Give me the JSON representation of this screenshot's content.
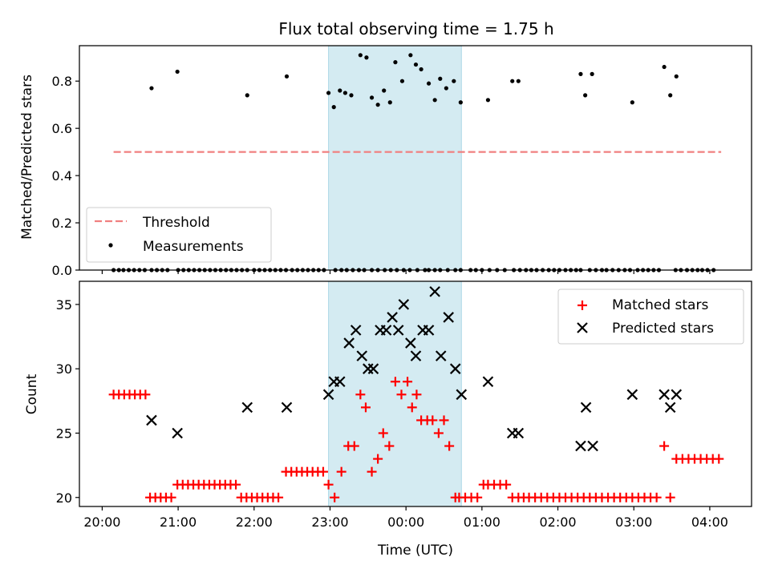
{
  "title": "Flux total observing time = 1.75 h",
  "colors": {
    "threshold": "#f08080",
    "band": "#add8e6",
    "matched": "#ff0000",
    "predicted": "#000000"
  },
  "chart_data": [
    {
      "type": "scatter",
      "ylabel": "Matched/Predicted stars",
      "ylim": [
        0,
        0.95
      ],
      "xlim_hours": [
        -0.3,
        8.55
      ],
      "yticks": [
        0.0,
        0.2,
        0.4,
        0.6,
        0.8
      ],
      "ytick_labels": [
        "0.0",
        "0.2",
        "0.4",
        "0.6",
        "0.8"
      ],
      "threshold": {
        "name": "Threshold",
        "value": 0.5,
        "x_range": [
          0.15,
          8.15
        ]
      },
      "shaded_span": [
        2.98,
        4.73
      ],
      "legend_position": "lower-left",
      "measurements": {
        "name": "Measurements",
        "x": [
          0.15,
          0.22,
          0.28,
          0.35,
          0.42,
          0.49,
          0.56,
          0.65,
          0.72,
          0.79,
          0.86,
          1.0,
          1.07,
          1.14,
          1.21,
          1.28,
          1.35,
          1.42,
          1.49,
          1.56,
          1.63,
          1.7,
          1.77,
          1.84,
          1.91,
          2.0,
          2.07,
          2.14,
          2.21,
          2.28,
          2.35,
          2.42,
          2.5,
          2.57,
          2.64,
          2.71,
          2.78,
          2.85,
          2.92,
          3.07,
          3.15,
          3.22,
          3.3,
          3.38,
          3.45,
          3.55,
          3.63,
          3.72,
          3.8,
          3.88,
          3.97,
          4.05,
          4.15,
          4.25,
          4.3,
          4.38,
          4.45,
          4.55,
          4.65,
          4.72,
          4.85,
          4.92,
          5.0,
          5.1,
          5.2,
          5.3,
          5.42,
          5.5,
          5.58,
          5.65,
          5.72,
          5.8,
          5.88,
          5.95,
          6.02,
          6.1,
          6.17,
          6.24,
          6.3,
          6.42,
          6.5,
          6.58,
          6.64,
          6.72,
          6.8,
          6.88,
          6.95,
          7.05,
          7.12,
          7.19,
          7.26,
          7.33,
          7.55,
          7.62,
          7.7,
          7.77,
          7.84,
          7.9,
          7.97,
          8.05,
          0.65,
          0.99,
          1.91,
          2.43,
          2.98,
          3.05,
          3.13,
          3.2,
          3.28,
          3.4,
          3.48,
          3.55,
          3.63,
          3.71,
          3.79,
          3.86,
          3.95,
          4.06,
          4.13,
          4.2,
          4.3,
          4.38,
          4.45,
          4.53,
          4.63,
          4.72,
          5.08,
          5.4,
          5.48,
          6.3,
          6.36,
          6.45,
          6.98,
          7.4,
          7.48,
          7.56
        ],
        "y": [
          0,
          0,
          0,
          0,
          0,
          0,
          0,
          0,
          0,
          0,
          0,
          0,
          0,
          0,
          0,
          0,
          0,
          0,
          0,
          0,
          0,
          0,
          0,
          0,
          0,
          0,
          0,
          0,
          0,
          0,
          0,
          0,
          0,
          0,
          0,
          0,
          0,
          0,
          0,
          0,
          0,
          0,
          0,
          0,
          0,
          0,
          0,
          0,
          0,
          0,
          0,
          0,
          0,
          0,
          0,
          0,
          0,
          0,
          0,
          0,
          0,
          0,
          0,
          0,
          0,
          0,
          0,
          0,
          0,
          0,
          0,
          0,
          0,
          0,
          0,
          0,
          0,
          0,
          0,
          0,
          0,
          0,
          0,
          0,
          0,
          0,
          0,
          0,
          0,
          0,
          0,
          0,
          0,
          0,
          0,
          0,
          0,
          0,
          0,
          0,
          0.77,
          0.84,
          0.74,
          0.82,
          0.75,
          0.69,
          0.76,
          0.75,
          0.74,
          0.91,
          0.9,
          0.73,
          0.7,
          0.76,
          0.71,
          0.88,
          0.8,
          0.91,
          0.87,
          0.85,
          0.79,
          0.72,
          0.81,
          0.77,
          0.8,
          0.71,
          0.72,
          0.8,
          0.8,
          0.83,
          0.74,
          0.83,
          0.71,
          0.86,
          0.74,
          0.82
        ]
      }
    },
    {
      "type": "scatter",
      "ylabel": "Count",
      "xlabel": "Time (UTC)",
      "ylim": [
        19.3,
        36.8
      ],
      "xlim_hours": [
        -0.3,
        8.55
      ],
      "yticks": [
        20,
        25,
        30,
        35
      ],
      "ytick_labels": [
        "20",
        "25",
        "30",
        "35"
      ],
      "xticks_hours": [
        0,
        1,
        2,
        3,
        4,
        5,
        6,
        7,
        8
      ],
      "xtick_labels": [
        "20:00",
        "21:00",
        "22:00",
        "23:00",
        "00:00",
        "01:00",
        "02:00",
        "03:00",
        "04:00"
      ],
      "shaded_span": [
        2.98,
        4.73
      ],
      "legend_position": "upper-right",
      "series": [
        {
          "name": "Matched stars",
          "marker": "plus",
          "x": [
            0.15,
            0.22,
            0.29,
            0.36,
            0.43,
            0.5,
            0.57,
            0.63,
            0.7,
            0.77,
            0.84,
            0.91,
            0.99,
            1.06,
            1.13,
            1.2,
            1.27,
            1.34,
            1.41,
            1.48,
            1.55,
            1.62,
            1.69,
            1.76,
            1.83,
            1.9,
            1.97,
            2.04,
            2.11,
            2.18,
            2.25,
            2.32,
            2.42,
            2.49,
            2.56,
            2.63,
            2.7,
            2.77,
            2.84,
            2.91,
            2.98,
            3.06,
            3.15,
            3.24,
            3.32,
            3.4,
            3.47,
            3.55,
            3.63,
            3.7,
            3.78,
            3.86,
            3.94,
            4.02,
            4.08,
            4.14,
            4.2,
            4.28,
            4.35,
            4.43,
            4.5,
            4.57,
            4.65,
            4.7,
            4.78,
            4.86,
            4.94,
            5.02,
            5.08,
            5.16,
            5.24,
            5.32,
            5.4,
            5.48,
            5.55,
            5.62,
            5.7,
            5.78,
            5.86,
            5.94,
            6.02,
            6.1,
            6.18,
            6.26,
            6.34,
            6.42,
            6.5,
            6.58,
            6.66,
            6.74,
            6.82,
            6.9,
            6.98,
            7.06,
            7.14,
            7.22,
            7.3,
            7.4,
            7.48,
            7.56,
            7.64,
            7.72,
            7.8,
            7.88,
            7.96,
            8.04,
            8.12
          ],
          "y": [
            28,
            28,
            28,
            28,
            28,
            28,
            28,
            20,
            20,
            20,
            20,
            20,
            21,
            21,
            21,
            21,
            21,
            21,
            21,
            21,
            21,
            21,
            21,
            21,
            20,
            20,
            20,
            20,
            20,
            20,
            20,
            20,
            22,
            22,
            22,
            22,
            22,
            22,
            22,
            22,
            21,
            20,
            22,
            24,
            24,
            28,
            27,
            22,
            23,
            25,
            24,
            29,
            28,
            29,
            27,
            28,
            26,
            26,
            26,
            25,
            26,
            24,
            20,
            20,
            20,
            20,
            20,
            21,
            21,
            21,
            21,
            21,
            20,
            20,
            20,
            20,
            20,
            20,
            20,
            20,
            20,
            20,
            20,
            20,
            20,
            20,
            20,
            20,
            20,
            20,
            20,
            20,
            20,
            20,
            20,
            20,
            20,
            24,
            20,
            23,
            23,
            23,
            23,
            23,
            23,
            23,
            23
          ]
        },
        {
          "name": "Predicted stars",
          "marker": "x",
          "x": [
            0.65,
            0.99,
            1.91,
            2.43,
            2.98,
            3.05,
            3.13,
            3.25,
            3.34,
            3.42,
            3.5,
            3.57,
            3.66,
            3.74,
            3.82,
            3.9,
            3.97,
            4.06,
            4.13,
            4.22,
            4.3,
            4.38,
            4.46,
            4.56,
            4.65,
            4.73,
            5.08,
            5.4,
            5.48,
            6.3,
            6.37,
            6.46,
            6.98,
            7.4,
            7.48,
            7.56
          ],
          "y": [
            26,
            25,
            27,
            27,
            28,
            29,
            29,
            32,
            33,
            31,
            30,
            30,
            33,
            33,
            34,
            33,
            35,
            32,
            31,
            33,
            33,
            36,
            31,
            34,
            30,
            28,
            29,
            25,
            25,
            24,
            27,
            24,
            28,
            28,
            27,
            28
          ]
        }
      ]
    }
  ]
}
